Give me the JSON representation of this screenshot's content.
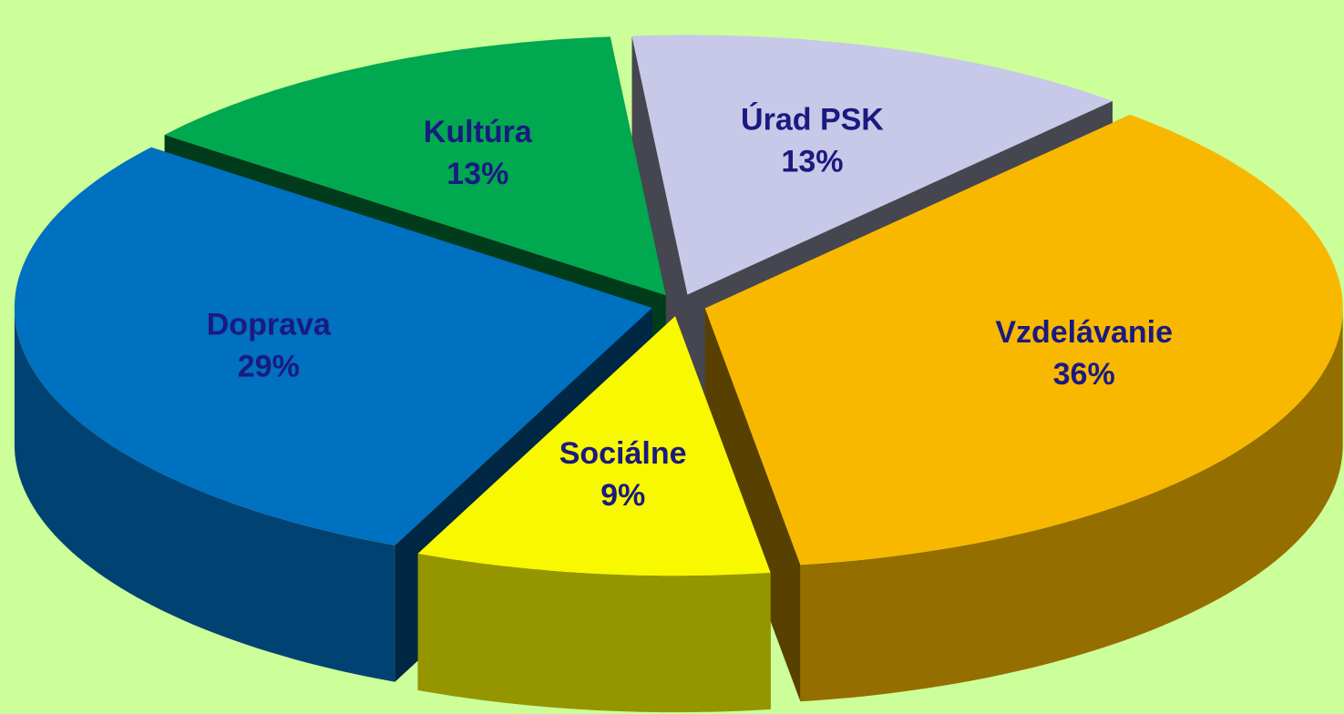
{
  "chart_data": {
    "type": "pie",
    "categories": [
      "Úrad PSK",
      "Vzdelávanie",
      "Sociálne",
      "Doprava",
      "Kultúra"
    ],
    "values": [
      13,
      36,
      9,
      29,
      13
    ],
    "value_labels": [
      "13%",
      "36%",
      "9%",
      "29%",
      "13%"
    ],
    "colors": [
      "#c8c8e8",
      "#f8b800",
      "#f8f800",
      "#0070c0",
      "#00a850"
    ]
  }
}
